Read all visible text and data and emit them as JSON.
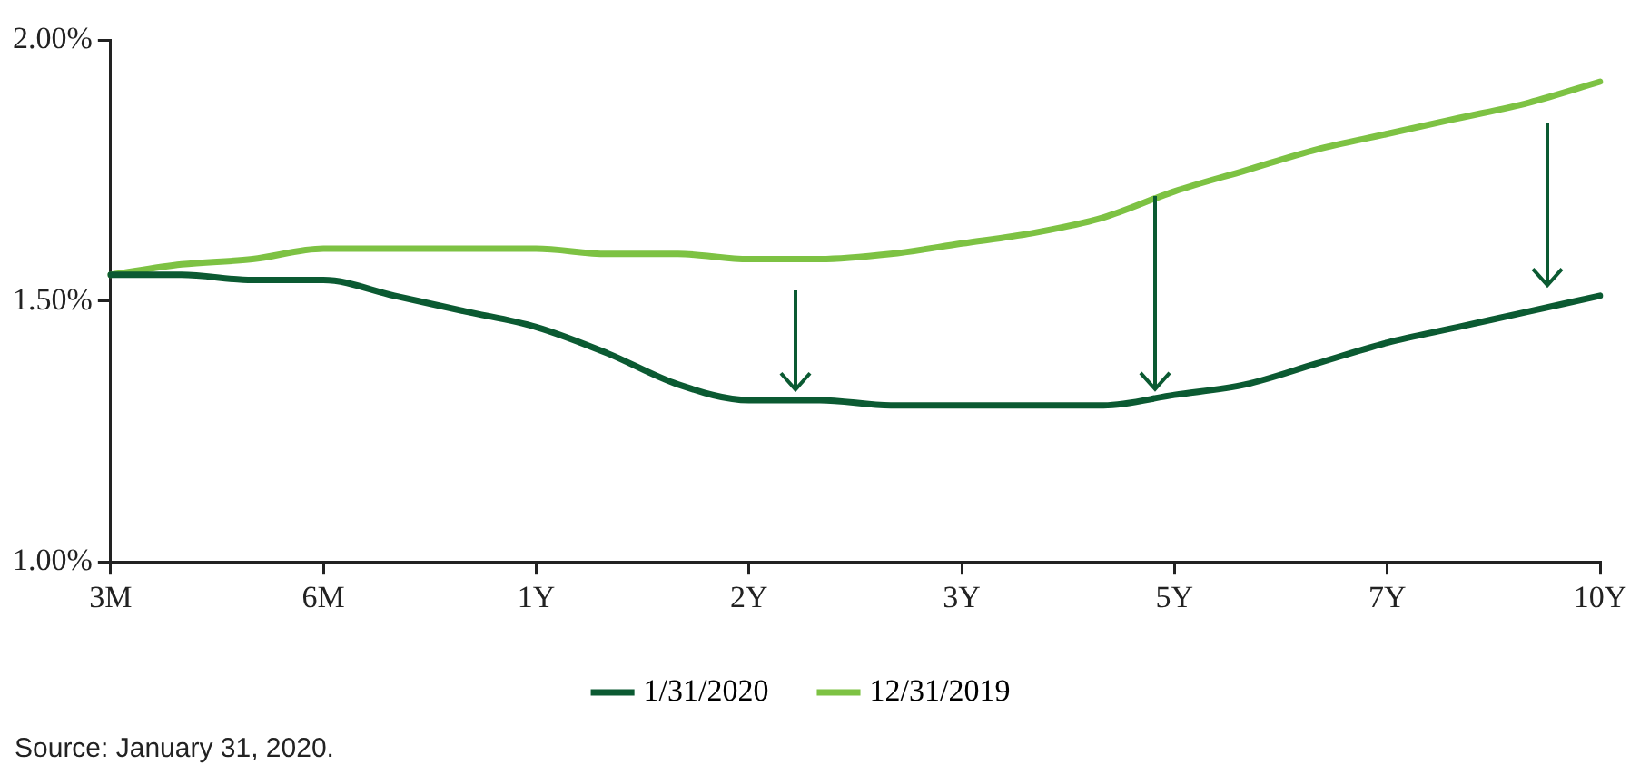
{
  "chart_data": {
    "type": "line",
    "series": [
      {
        "name": "1/31/2020",
        "color": "#0b5a32",
        "values": [
          1.55,
          1.55,
          1.54,
          1.54,
          1.51,
          1.48,
          1.45,
          1.4,
          1.34,
          1.31,
          1.31,
          1.3,
          1.3,
          1.3,
          1.3,
          1.32,
          1.34,
          1.38,
          1.42,
          1.45,
          1.48,
          1.51
        ]
      },
      {
        "name": "12/31/2019",
        "color": "#7dc243",
        "values": [
          1.55,
          1.57,
          1.58,
          1.6,
          1.6,
          1.6,
          1.6,
          1.59,
          1.59,
          1.58,
          1.58,
          1.59,
          1.61,
          1.63,
          1.66,
          1.71,
          1.75,
          1.79,
          1.82,
          1.85,
          1.88,
          1.92
        ]
      }
    ],
    "categories": [
      "3M",
      null,
      null,
      "6M",
      null,
      null,
      "1Y",
      null,
      null,
      "2Y",
      null,
      null,
      "3Y",
      null,
      null,
      "5Y",
      null,
      null,
      "7Y",
      null,
      null,
      "10Y"
    ],
    "ylim": [
      1,
      2
    ],
    "yticks": [
      {
        "value": 1,
        "label": "1.00%"
      },
      {
        "value": 1.5,
        "label": "1.50%"
      },
      {
        "value": 2,
        "label": "2.00%"
      }
    ],
    "grid": false,
    "legend": "bottom",
    "marker": "none",
    "line_style": "solid",
    "annotations": [
      "Source: January 31, 2020."
    ]
  }
}
